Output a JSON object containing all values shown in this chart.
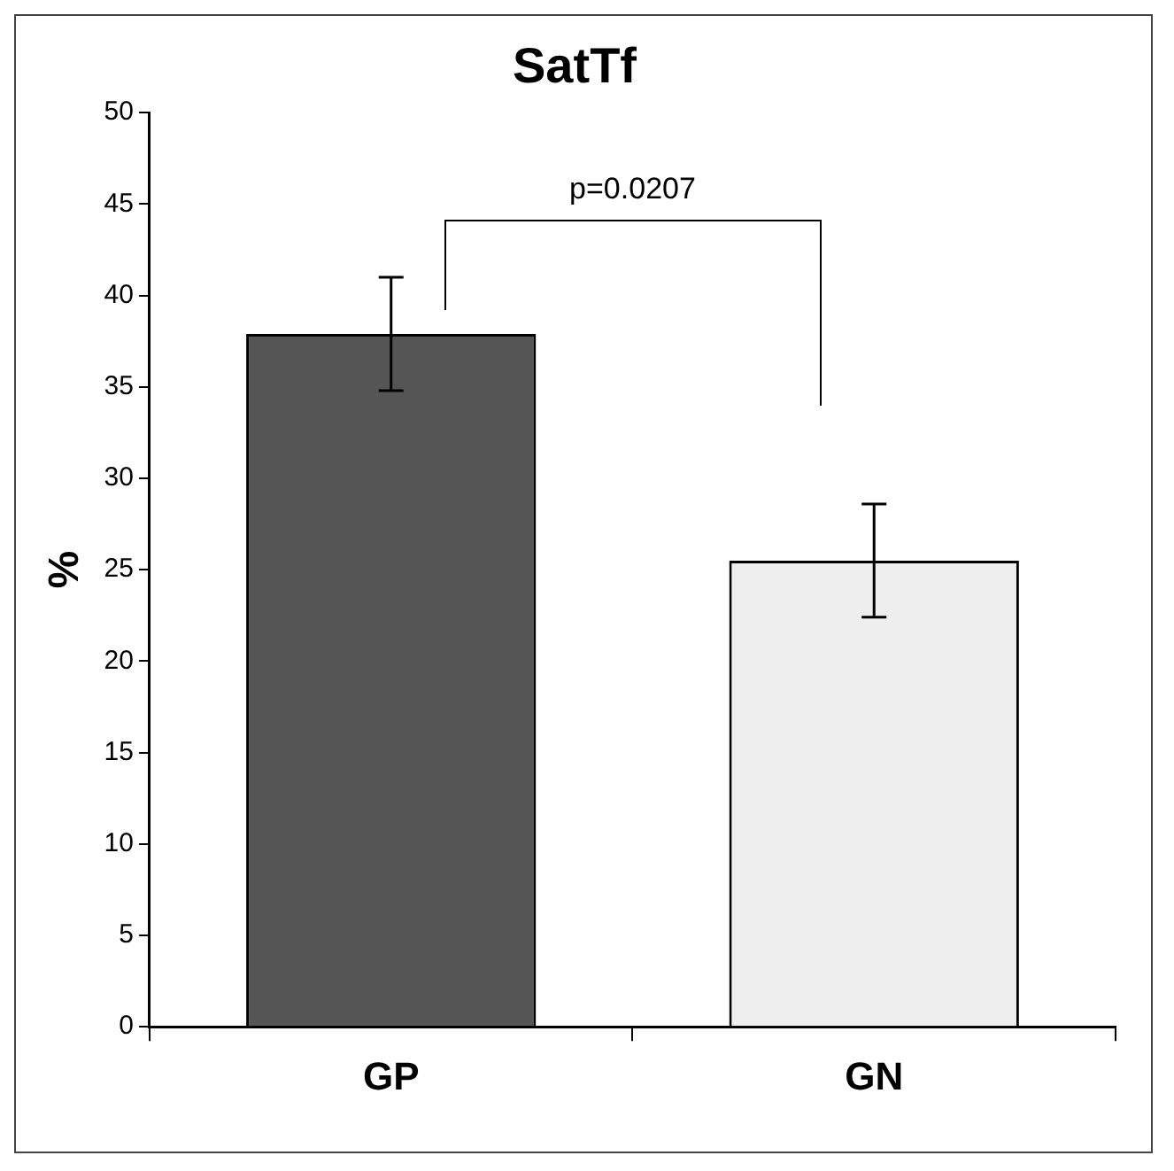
{
  "chart_data": {
    "type": "bar",
    "title": "SatTf",
    "ylabel": "%",
    "categories": [
      "GP",
      "GN"
    ],
    "series": [
      {
        "colors": [
          "#555555",
          "#eeeeee"
        ],
        "values": [
          37.9,
          25.5
        ],
        "errors": [
          3.1,
          3.1
        ]
      }
    ],
    "ylim": [
      0,
      50
    ],
    "yticks": [
      0,
      5,
      10,
      15,
      20,
      25,
      30,
      35,
      40,
      45,
      50
    ],
    "annotations": [
      "p=0.0207"
    ],
    "grid": false,
    "legend": false
  }
}
